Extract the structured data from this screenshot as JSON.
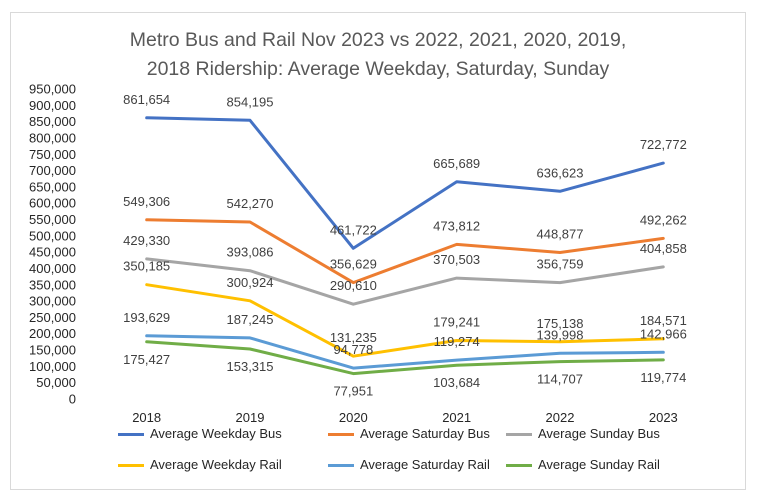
{
  "chart_data": {
    "type": "line",
    "title": "Metro Bus and Rail Nov 2023 vs 2022, 2021, 2020, 2019, 2018 Ridership: Average Weekday, Saturday, Sunday",
    "title_lines": [
      "Metro Bus and Rail Nov 2023 vs 2022, 2021, 2020, 2019,",
      "2018 Ridership: Average Weekday, Saturday, Sunday"
    ],
    "categories": [
      "2018",
      "2019",
      "2020",
      "2021",
      "2022",
      "2023"
    ],
    "ylim": [
      0,
      950000
    ],
    "yticks": [
      "0",
      "50,000",
      "100,000",
      "150,000",
      "200,000",
      "250,000",
      "300,000",
      "350,000",
      "400,000",
      "450,000",
      "500,000",
      "550,000",
      "600,000",
      "650,000",
      "700,000",
      "750,000",
      "800,000",
      "850,000",
      "900,000",
      "950,000"
    ],
    "grid": false,
    "legend_position": "bottom",
    "series": [
      {
        "name": "Average Weekday Bus",
        "color": "#4472C4",
        "values": [
          861654,
          854195,
          461722,
          665689,
          636623,
          722772
        ],
        "labels": [
          "861,654",
          "854,195",
          "461,722",
          "665,689",
          "636,623",
          "722,772"
        ]
      },
      {
        "name": "Average Saturday Bus",
        "color": "#ED7D31",
        "values": [
          549306,
          542270,
          356629,
          473812,
          448877,
          492262
        ],
        "labels": [
          "549,306",
          "542,270",
          "356,629",
          "473,812",
          "448,877",
          "492,262"
        ]
      },
      {
        "name": "Average Sunday Bus",
        "color": "#A5A5A5",
        "values": [
          429330,
          393086,
          290610,
          370503,
          356759,
          404858
        ],
        "labels": [
          "429,330",
          "393,086",
          "290,610",
          "370,503",
          "356,759",
          "404,858"
        ]
      },
      {
        "name": "Average Weekday Rail",
        "color": "#FFC000",
        "values": [
          350185,
          300924,
          131235,
          179241,
          175138,
          184571
        ],
        "labels": [
          "350,185",
          "300,924",
          "131,235",
          "179,241",
          "175,138",
          "184,571"
        ]
      },
      {
        "name": "Average Saturday Rail",
        "color": "#5B9BD5",
        "values": [
          193629,
          187245,
          94778,
          119274,
          139998,
          142966
        ],
        "labels": [
          "193,629",
          "187,245",
          "94,778",
          "119,274",
          "139,998",
          "142,966"
        ]
      },
      {
        "name": "Average Sunday Rail",
        "color": "#70AD47",
        "values": [
          175427,
          153315,
          77951,
          103684,
          114707,
          119774
        ],
        "labels": [
          "175,427",
          "153,315",
          "77,951",
          "103,684",
          "114,707",
          "119,774"
        ]
      }
    ]
  }
}
